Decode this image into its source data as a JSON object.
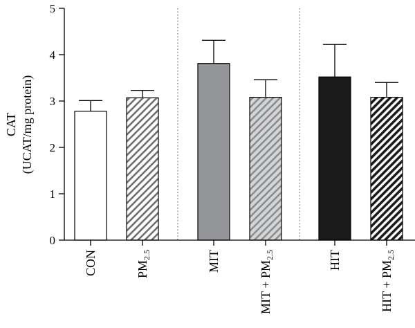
{
  "chart_data": {
    "type": "bar",
    "ylabel_line1": "CAT",
    "ylabel_line2": "(UCAT/mg protein)",
    "ylim": [
      0,
      5
    ],
    "yticks": [
      "0",
      "1",
      "2",
      "3",
      "4",
      "5"
    ],
    "categories": [
      {
        "label": "CON",
        "sub": "",
        "suffix": ""
      },
      {
        "label": "PM",
        "sub": "2.5",
        "suffix": ""
      },
      {
        "label": "MIT",
        "sub": "",
        "suffix": ""
      },
      {
        "label": "MIT + PM",
        "sub": "2.5",
        "suffix": ""
      },
      {
        "label": "HIT",
        "sub": "",
        "suffix": ""
      },
      {
        "label": "HIT + PM",
        "sub": "2.5",
        "suffix": ""
      }
    ],
    "values": [
      2.78,
      3.07,
      3.81,
      3.08,
      3.52,
      3.08
    ],
    "errors": [
      0.23,
      0.16,
      0.5,
      0.38,
      0.7,
      0.32
    ],
    "bar_fills": [
      "white",
      "hatch-gray",
      "solid-gray",
      "hatch-gray-light",
      "solid-black",
      "hatch-black"
    ],
    "colors": {
      "gray": "#939598",
      "black": "#1a1a1a",
      "hatch": "#6d6e71"
    },
    "group_separators": "dotted"
  }
}
